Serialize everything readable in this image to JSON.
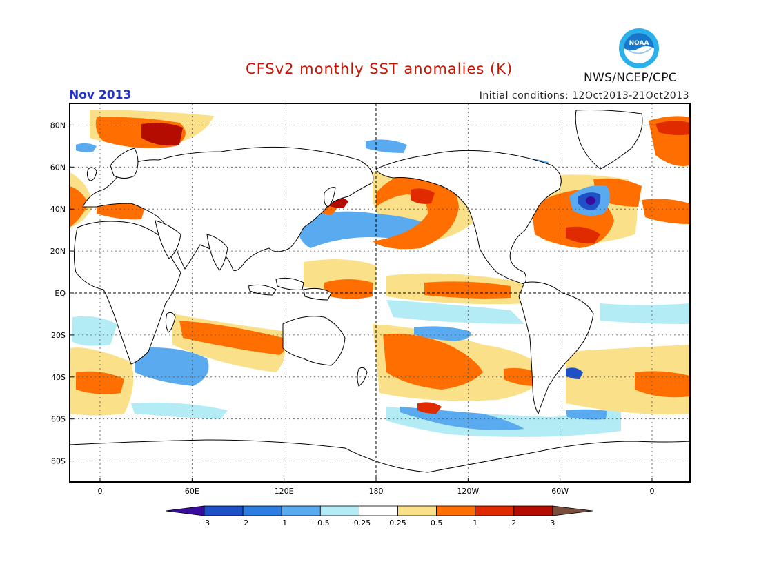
{
  "header": {
    "title": "CFSv2 monthly SST anomalies (K)",
    "month": "Nov 2013",
    "initial_conditions": "Initial conditions: 12Oct2013-21Oct2013",
    "organization": "NWS/NCEP/CPC",
    "logo_text": "NOAA"
  },
  "colors": {
    "title": "#cc1100",
    "month": "#2233cc",
    "frame": "#000000",
    "grid": "#555555",
    "logo_blue": "#1677cc",
    "logo_outer": "#2ab0ea"
  },
  "axes": {
    "lat_labels": [
      "80N",
      "60N",
      "40N",
      "20N",
      "EQ",
      "20S",
      "40S",
      "60S",
      "80S"
    ],
    "lon_labels": [
      "0",
      "60E",
      "120E",
      "180",
      "120W",
      "60W",
      "0"
    ]
  },
  "colorbar": {
    "tick_labels": [
      "-3",
      "-2",
      "-1",
      "-0.5",
      "-0.25",
      "0.25",
      "0.5",
      "1",
      "2",
      "3"
    ],
    "bins": [
      {
        "range": "< -3",
        "color": "#3a0c9c"
      },
      {
        "range": "-3 to -2",
        "color": "#1e50c8"
      },
      {
        "range": "-2 to -1",
        "color": "#2e7ee0"
      },
      {
        "range": "-1 to -0.5",
        "color": "#5aaaf0"
      },
      {
        "range": "-0.5 to -0.25",
        "color": "#b4ecf6"
      },
      {
        "range": "-0.25 to 0.25",
        "color": "#ffffff"
      },
      {
        "range": "0.25 to 0.5",
        "color": "#fbe08a"
      },
      {
        "range": "0.5 to 1",
        "color": "#ff6e00"
      },
      {
        "range": "1 to 2",
        "color": "#e02a00"
      },
      {
        "range": "2 to 3",
        "color": "#b40c00"
      },
      {
        "range": "> 3",
        "color": "#7a4e3c"
      }
    ]
  },
  "anomaly_regions": [
    {
      "name": "north-pacific-warm-arc",
      "level": "0.5 to 1"
    },
    {
      "name": "north-pacific-warm-core",
      "level": "1 to 2"
    },
    {
      "name": "northwest-pacific-cool-band",
      "level": "-1 to -0.5"
    },
    {
      "name": "north-atlantic-cold-spot",
      "level": "< -3"
    },
    {
      "name": "north-atlantic-warm",
      "level": "0.5 to 1"
    },
    {
      "name": "southeast-pacific-warm",
      "level": "0.5 to 1"
    },
    {
      "name": "southern-indian-warm-band",
      "level": "0.5 to 1"
    },
    {
      "name": "southern-indian-cool",
      "level": "-1 to -0.5"
    },
    {
      "name": "equatorial-pacific-warm",
      "level": "0.5 to 1"
    },
    {
      "name": "greenland-sea-warm",
      "level": "2 to 3"
    },
    {
      "name": "southern-ocean-cool",
      "level": "-1 to -0.5"
    }
  ]
}
